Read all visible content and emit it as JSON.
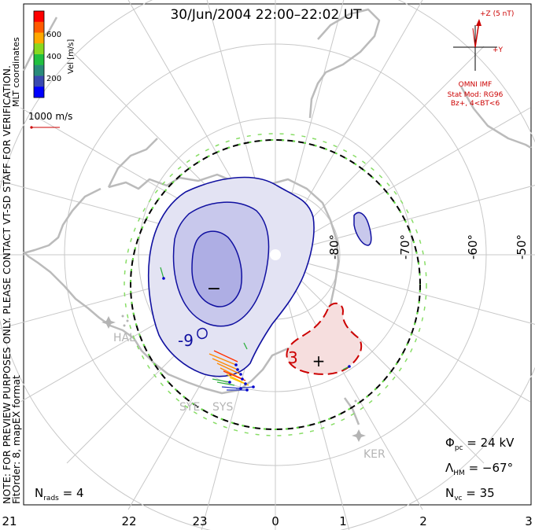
{
  "title": "30/Jun/2004 22:00–22:02 UT",
  "side_note_1": "NOTE: FOR PREVIEW PURPOSES ONLY. PLEASE CONTACT VT-SD STAFF FOR VERIFICATION.",
  "side_note_2": "FitOrder: 8, mapEX format",
  "coord_label": "MLT coordinates",
  "colorbar": {
    "unit": "Vel [m/s]",
    "ticks": [
      "600",
      "400",
      "200"
    ],
    "colors": [
      "#ff0000",
      "#ff5a00",
      "#ffa800",
      "#88d820",
      "#20c040",
      "#2a8a7a",
      "#3a4ab0",
      "#0000ff"
    ]
  },
  "vector_scale": "1000 m/s",
  "imf": {
    "z_label": "+Z (5 nT)",
    "y_label": "+Y",
    "source": "OMNI IMF",
    "model": "Stat Mod: RG96",
    "condition": "Bz+, 4<BT<6"
  },
  "lat_labels": [
    "-80°",
    "-70°",
    "-60°",
    "-50°"
  ],
  "mlt_labels": [
    "21",
    "22",
    "23",
    "0",
    "1",
    "2",
    "3"
  ],
  "radars": [
    "HAL",
    "SYE",
    "SYS",
    "KER"
  ],
  "contour_labels": {
    "neg": "-9",
    "pos": "3"
  },
  "stats": {
    "phi_pc": "Φ",
    "phi_sub": "pc",
    "phi_val": " = 24 kV",
    "lambda": "Λ",
    "lambda_sub": "HM",
    "lambda_val": " = −67°",
    "nvc": "N",
    "nvc_sub": "vc",
    "nvc_val": " = 35",
    "nrads": "N",
    "nrads_sub": "rads",
    "nrads_val": " = 4"
  },
  "marks": {
    "min_mark": "−",
    "max_mark": "+"
  },
  "colors": {
    "neg_fill": "#e3e3f3",
    "neg_fill2": "#c8c8ec",
    "neg_fill3": "#aeaee4",
    "neg_line": "#1010a0",
    "pos_fill": "#f6dede",
    "pos_line": "#cc0000",
    "grid": "#c8c8c8",
    "land": "#bbbbbb"
  }
}
